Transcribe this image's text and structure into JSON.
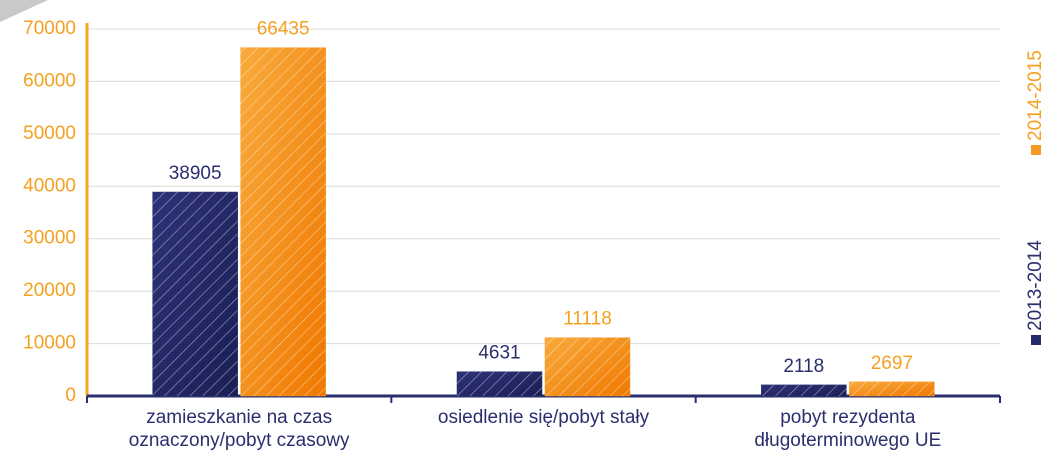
{
  "chart_data": {
    "type": "bar",
    "categories": [
      "zamieszkanie na czas\noznaczony/pobyt czasowy",
      "osiedlenie się/pobyt stały",
      "pobyt rezydenta\ndługoterminowego UE"
    ],
    "series": [
      {
        "name": "2013-2014",
        "color": "#252a6b",
        "values": [
          38905,
          4631,
          2118
        ]
      },
      {
        "name": "2014-2015",
        "color": "#f59a23",
        "values": [
          66435,
          11118,
          2697
        ]
      }
    ],
    "ylim": [
      0,
      70000
    ],
    "yticks": [
      0,
      10000,
      20000,
      30000,
      40000,
      50000,
      60000,
      70000
    ],
    "grid": true,
    "legend": "right"
  }
}
